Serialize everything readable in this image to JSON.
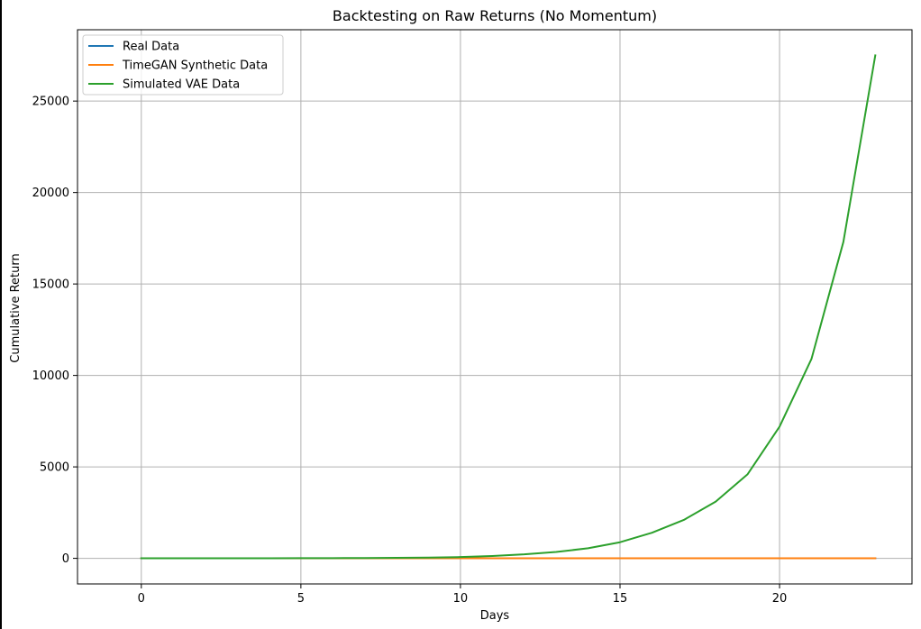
{
  "chart_data": {
    "type": "line",
    "title": "Backtesting on Raw Returns (No Momentum)",
    "xlabel": "Days",
    "ylabel": "Cumulative Return",
    "xlim": [
      -2.0,
      24.15
    ],
    "ylim": [
      -1400,
      28900
    ],
    "xticks": [
      0,
      5,
      10,
      15,
      20
    ],
    "yticks": [
      0,
      5000,
      10000,
      15000,
      20000,
      25000
    ],
    "grid": true,
    "legend_position": "upper-left",
    "x": [
      0,
      1,
      2,
      3,
      4,
      5,
      6,
      7,
      8,
      9,
      10,
      11,
      12,
      13,
      14,
      15,
      16,
      17,
      18,
      19,
      20,
      21,
      22,
      23
    ],
    "series": [
      {
        "name": "Real Data",
        "color": "#1f77b4",
        "values": [
          1.0,
          1.01,
          1.02,
          1.02,
          1.03,
          1.04,
          1.05,
          1.06,
          1.06,
          1.07,
          1.08,
          1.09,
          1.1,
          1.1,
          1.11,
          1.12,
          1.13,
          1.14,
          1.15,
          1.16,
          1.17,
          1.18,
          1.19,
          1.2
        ]
      },
      {
        "name": "TimeGAN Synthetic Data",
        "color": "#ff7f0e",
        "values": [
          1.0,
          1.02,
          1.04,
          1.06,
          1.08,
          1.1,
          1.13,
          1.15,
          1.17,
          1.2,
          1.22,
          1.25,
          1.27,
          1.3,
          1.32,
          1.35,
          1.38,
          1.4,
          1.43,
          1.46,
          1.49,
          1.52,
          1.55,
          1.58
        ]
      },
      {
        "name": "Simulated VAE Data",
        "color": "#2ca02c",
        "values": [
          1,
          1.5,
          2.3,
          3.4,
          5.1,
          7.7,
          12,
          18,
          27,
          40,
          70,
          130,
          220,
          350,
          550,
          880,
          1400,
          2100,
          3100,
          4600,
          7200,
          10900,
          17300,
          27500
        ]
      }
    ]
  }
}
